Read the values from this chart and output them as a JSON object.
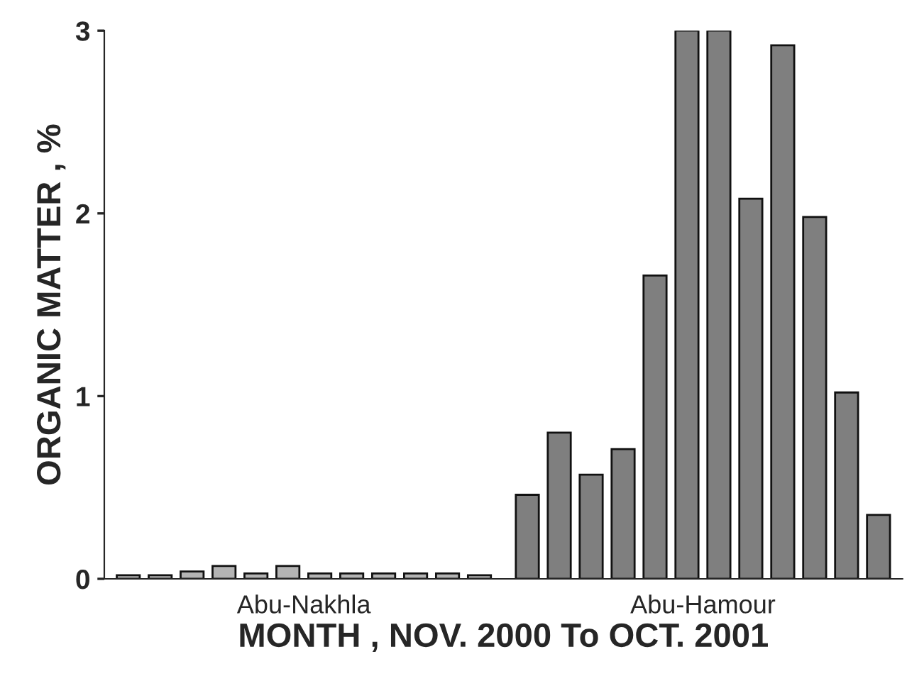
{
  "chart_data": {
    "type": "bar",
    "xlabel": "MONTH , NOV. 2000 To OCT. 2001",
    "ylabel": "ORGANIC MATTER , %",
    "categories": [
      "Abu-Nakhla",
      "Abu-Hamour"
    ],
    "series": [
      {
        "colors": [
          "#b4b4b4",
          "#7f7f7f"
        ],
        "values": [
          0.02,
          0.46
        ]
      },
      {
        "colors": [
          "#b4b4b4",
          "#7f7f7f"
        ],
        "values": [
          0.02,
          0.8
        ]
      },
      {
        "colors": [
          "#b4b4b4",
          "#7f7f7f"
        ],
        "values": [
          0.04,
          0.57
        ]
      },
      {
        "colors": [
          "#b4b4b4",
          "#7f7f7f"
        ],
        "values": [
          0.07,
          0.71
        ]
      },
      {
        "colors": [
          "#b4b4b4",
          "#7f7f7f"
        ],
        "values": [
          0.03,
          1.66
        ]
      },
      {
        "colors": [
          "#b4b4b4",
          "#7f7f7f"
        ],
        "values": [
          0.07,
          3.0
        ]
      },
      {
        "colors": [
          "#b4b4b4",
          "#7f7f7f"
        ],
        "values": [
          0.03,
          3.0
        ]
      },
      {
        "colors": [
          "#b4b4b4",
          "#7f7f7f"
        ],
        "values": [
          0.03,
          2.08
        ]
      },
      {
        "colors": [
          "#b4b4b4",
          "#7f7f7f"
        ],
        "values": [
          0.03,
          2.92
        ]
      },
      {
        "colors": [
          "#b4b4b4",
          "#7f7f7f"
        ],
        "values": [
          0.03,
          1.98
        ]
      },
      {
        "colors": [
          "#b4b4b4",
          "#7f7f7f"
        ],
        "values": [
          0.03,
          1.02
        ]
      },
      {
        "colors": [
          "#b4b4b4",
          "#7f7f7f"
        ],
        "values": [
          0.02,
          0.35
        ]
      }
    ],
    "ylim": [
      0,
      3
    ],
    "yticks": [
      0,
      1,
      2,
      3
    ],
    "grid": false,
    "legend": false
  }
}
